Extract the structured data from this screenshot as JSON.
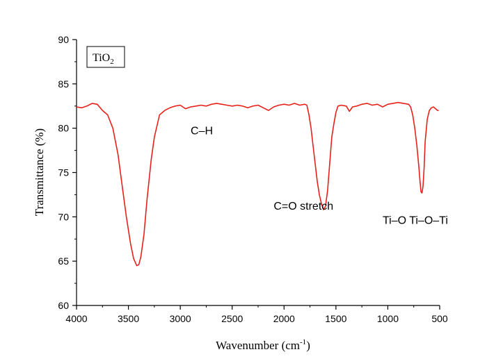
{
  "chart_data": {
    "type": "line",
    "xlabel": "Wavenumber (cm",
    "xlabel_sup": "-1",
    "xlabel_tail": ")",
    "ylabel": "Transmittance (%)",
    "xlim": [
      4000,
      500
    ],
    "ylim": [
      60,
      90
    ],
    "x_reversed": true,
    "x_ticks": [
      4000,
      3500,
      3000,
      2500,
      2000,
      1500,
      1000,
      500
    ],
    "y_ticks": [
      60,
      65,
      70,
      75,
      80,
      85,
      90
    ],
    "grid": false,
    "legend": {
      "label": "TiO",
      "label_sub": "2",
      "placement": "top-left"
    },
    "series_color": "#e8201a",
    "series": [
      {
        "x": [
          4000,
          3950,
          3900,
          3850,
          3800,
          3750,
          3700,
          3650,
          3600,
          3560,
          3520,
          3480,
          3450,
          3420,
          3400,
          3380,
          3350,
          3320,
          3280,
          3250,
          3200,
          3150,
          3100,
          3050,
          3000,
          2950,
          2900,
          2850,
          2800,
          2750,
          2700,
          2650,
          2600,
          2550,
          2500,
          2450,
          2400,
          2350,
          2300,
          2250,
          2200,
          2150,
          2100,
          2050,
          2000,
          1950,
          1900,
          1850,
          1800,
          1780,
          1760,
          1740,
          1720,
          1700,
          1680,
          1660,
          1640,
          1620,
          1600,
          1580,
          1560,
          1540,
          1520,
          1500,
          1480,
          1450,
          1400,
          1370,
          1340,
          1300,
          1250,
          1200,
          1150,
          1100,
          1050,
          1000,
          950,
          900,
          850,
          800,
          780,
          760,
          740,
          720,
          700,
          690,
          680,
          670,
          660,
          650,
          640,
          620,
          600,
          580,
          560,
          540,
          520,
          510
        ],
        "y": [
          82.4,
          82.3,
          82.5,
          82.8,
          82.7,
          82.0,
          81.5,
          80.0,
          77.0,
          73.5,
          70.0,
          67.0,
          65.3,
          64.5,
          64.6,
          65.5,
          68.0,
          72.0,
          76.5,
          79.0,
          81.5,
          82.0,
          82.3,
          82.5,
          82.6,
          82.2,
          82.4,
          82.5,
          82.6,
          82.5,
          82.7,
          82.8,
          82.7,
          82.6,
          82.5,
          82.6,
          82.5,
          82.3,
          82.5,
          82.6,
          82.3,
          82.0,
          82.4,
          82.6,
          82.7,
          82.6,
          82.8,
          82.6,
          82.7,
          82.6,
          81.5,
          80.0,
          78.0,
          76.0,
          74.0,
          72.5,
          71.5,
          70.8,
          71.2,
          73.0,
          76.0,
          79.0,
          80.5,
          81.8,
          82.5,
          82.6,
          82.5,
          81.9,
          82.4,
          82.5,
          82.7,
          82.8,
          82.6,
          82.7,
          82.4,
          82.7,
          82.8,
          82.9,
          82.8,
          82.7,
          82.4,
          81.5,
          80.0,
          78.0,
          75.5,
          74.0,
          72.8,
          72.7,
          73.5,
          75.5,
          78.5,
          81.0,
          82.0,
          82.3,
          82.4,
          82.2,
          82.0,
          82.0
        ]
      }
    ],
    "annotations": [
      {
        "text": "C–H",
        "x": 2900,
        "y": 79.3
      },
      {
        "text": "C=O stretch",
        "x": 2100,
        "y": 70.8
      },
      {
        "text": "Ti–O Ti–O–Ti",
        "x": 1050,
        "y": 69.2
      }
    ]
  }
}
